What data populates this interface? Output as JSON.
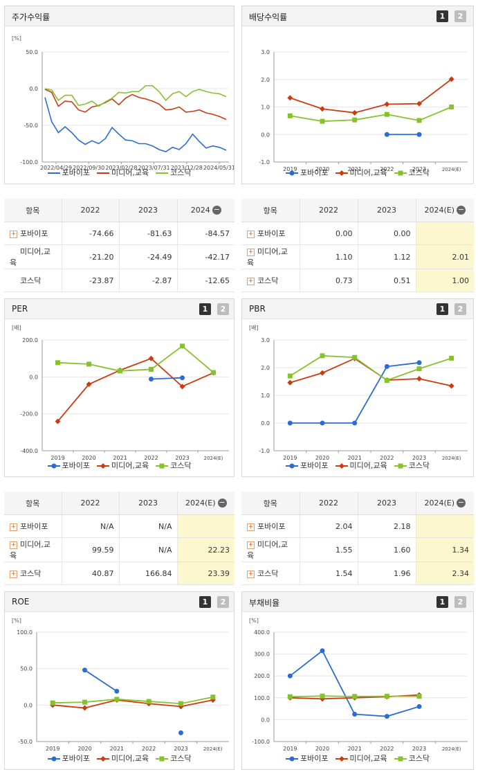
{
  "legend_names": [
    "포바이포",
    "미디어,교육",
    "코스닥"
  ],
  "colors": {
    "pobaipo": "#2a6cd4",
    "media": "#cc3a0f",
    "kosdaq": "#86c22b"
  },
  "charts": {
    "stock": {
      "title": "주가수익률",
      "unit": "[%]",
      "chart_data": {
        "type": "line",
        "yticks": [
          "50.0",
          "0.0",
          "-50.0",
          "-100.0"
        ],
        "ylim": [
          -100,
          50
        ],
        "xticks": [
          "2022/04/29",
          "2022/09/30",
          "2023/02/28",
          "2023/07/31",
          "2023/12/28",
          "2024/05/31"
        ],
        "series": [
          {
            "name": "포바이포",
            "values": [
              -12,
              -45,
              -60,
              -52,
              -60,
              -70,
              -76,
              -71,
              -75,
              -68,
              -53,
              -62,
              -70,
              -71,
              -75,
              -75,
              -78,
              -83,
              -86,
              -80,
              -83,
              -75,
              -62,
              -72,
              -81,
              -78,
              -80,
              -84
            ]
          },
          {
            "name": "미디어,교육",
            "values": [
              -1,
              -5,
              -24,
              -17,
              -18,
              -29,
              -32,
              -25,
              -23,
              -19,
              -14,
              -22,
              -13,
              -8,
              -12,
              -14,
              -17,
              -21,
              -29,
              -28,
              -25,
              -32,
              -31,
              -29,
              -33,
              -35,
              -38,
              -42
            ]
          },
          {
            "name": "코스닥",
            "values": [
              0,
              -2,
              -16,
              -9,
              -9,
              -23,
              -21,
              -17,
              -24,
              -18,
              -13,
              -5,
              -6,
              -4,
              -4,
              4,
              4,
              -4,
              -16,
              -7,
              -4,
              -11,
              -4,
              -1,
              -4,
              -6,
              -7,
              -11
            ]
          }
        ]
      }
    },
    "dividend": {
      "title": "배당수익률",
      "unit": "",
      "buttons": [
        "1",
        "2"
      ],
      "chart_data": {
        "type": "line",
        "yticks": [
          "3.0",
          "2.0",
          "1.0",
          "0.0",
          "-1.0"
        ],
        "ylim": [
          -1,
          3
        ],
        "categories": [
          "2019",
          "2020",
          "2021",
          "2022",
          "2023",
          "2024(E)"
        ],
        "series": [
          {
            "name": "포바이포",
            "values": [
              null,
              null,
              null,
              0.0,
              0.0,
              null
            ]
          },
          {
            "name": "미디어,교육",
            "values": [
              1.33,
              0.93,
              0.79,
              1.1,
              1.12,
              2.01
            ]
          },
          {
            "name": "코스닥",
            "values": [
              0.68,
              0.48,
              0.53,
              0.73,
              0.51,
              1.0
            ]
          }
        ]
      }
    },
    "per": {
      "title": "PER",
      "unit": "[배]",
      "buttons": [
        "1",
        "2"
      ],
      "chart_data": {
        "type": "line",
        "yticks": [
          "200.0",
          "0.0",
          "-200.0",
          "-400.0"
        ],
        "ylim": [
          -400,
          200
        ],
        "categories": [
          "2019",
          "2020",
          "2021",
          "2022",
          "2023",
          "2024(E)"
        ],
        "series": [
          {
            "name": "포바이포",
            "values": [
              null,
              null,
              null,
              -12,
              -5,
              null
            ]
          },
          {
            "name": "미디어,교육",
            "values": [
              -241,
              -40,
              36,
              99.59,
              -52,
              22.23
            ]
          },
          {
            "name": "코스닥",
            "values": [
              77,
              69,
              32,
              40.87,
              166.84,
              23.39
            ]
          }
        ]
      }
    },
    "pbr": {
      "title": "PBR",
      "unit": "[배]",
      "buttons": [
        "1",
        "2"
      ],
      "chart_data": {
        "type": "line",
        "yticks": [
          "3.0",
          "2.0",
          "1.0",
          "0.0",
          "-1.0"
        ],
        "ylim": [
          -1,
          3
        ],
        "categories": [
          "2019",
          "2020",
          "2021",
          "2022",
          "2023",
          "2024(E)"
        ],
        "series": [
          {
            "name": "포바이포",
            "values": [
              0.0,
              0.0,
              0.0,
              2.04,
              2.18,
              null
            ]
          },
          {
            "name": "미디어,교육",
            "values": [
              1.46,
              1.81,
              2.33,
              1.55,
              1.6,
              1.34
            ]
          },
          {
            "name": "코스닥",
            "values": [
              1.7,
              2.43,
              2.37,
              1.54,
              1.96,
              2.34
            ]
          }
        ]
      }
    },
    "roe": {
      "title": "ROE",
      "unit": "[%]",
      "buttons": [
        "1",
        "2"
      ],
      "chart_data": {
        "type": "line",
        "yticks": [
          "100.0",
          "50.0",
          "0.0",
          "-50.0"
        ],
        "ylim": [
          -50,
          100
        ],
        "categories": [
          "2019",
          "2020",
          "2021",
          "2022",
          "2023",
          "2024(E)"
        ],
        "series": [
          {
            "name": "포바이포",
            "values": [
              null,
              48,
              19,
              null,
              -38,
              null
            ]
          },
          {
            "name": "미디어,교육",
            "values": [
              0,
              -4,
              7,
              2,
              -2,
              7
            ]
          },
          {
            "name": "코스닥",
            "values": [
              3,
              4,
              8,
              5,
              2,
              11
            ]
          }
        ]
      }
    },
    "debt": {
      "title": "부채비율",
      "unit": "[%]",
      "buttons": [
        "1",
        "2"
      ],
      "chart_data": {
        "type": "line",
        "yticks": [
          "400.0",
          "300.0",
          "200.0",
          "100.0",
          "0.0",
          "-100.0"
        ],
        "ylim": [
          -100,
          400
        ],
        "categories": [
          "2019",
          "2020",
          "2021",
          "2022",
          "2023",
          "2024(E)"
        ],
        "series": [
          {
            "name": "포바이포",
            "values": [
              200,
              315,
              25,
              15,
              60,
              null
            ]
          },
          {
            "name": "미디어,교육",
            "values": [
              100,
              95,
              100,
              105,
              113,
              null
            ]
          },
          {
            "name": "코스닥",
            "values": [
              105,
              108,
              106,
              107,
              107,
              null
            ]
          }
        ]
      }
    }
  },
  "tables": {
    "stock": {
      "header": [
        "항목",
        "2022",
        "2023",
        "2024"
      ],
      "rows": [
        {
          "name": "포바이포",
          "expand": true,
          "values": [
            "-74.66",
            "-81.63",
            "-84.57"
          ]
        },
        {
          "name": "미디어,교육",
          "expand": false,
          "values": [
            "-21.20",
            "-24.49",
            "-42.17"
          ]
        },
        {
          "name": "코스닥",
          "expand": false,
          "values": [
            "-23.87",
            "-2.87",
            "-12.65"
          ]
        }
      ]
    },
    "dividend": {
      "header": [
        "항목",
        "2022",
        "2023",
        "2024(E)"
      ],
      "rows": [
        {
          "name": "포바이포",
          "expand": true,
          "values": [
            "0.00",
            "0.00",
            ""
          ]
        },
        {
          "name": "미디어,교육",
          "expand": true,
          "values": [
            "1.10",
            "1.12",
            "2.01"
          ]
        },
        {
          "name": "코스닥",
          "expand": true,
          "values": [
            "0.73",
            "0.51",
            "1.00"
          ]
        }
      ]
    },
    "per": {
      "header": [
        "항목",
        "2022",
        "2023",
        "2024(E)"
      ],
      "rows": [
        {
          "name": "포바이포",
          "expand": true,
          "values": [
            "N/A",
            "N/A",
            ""
          ]
        },
        {
          "name": "미디어,교육",
          "expand": true,
          "values": [
            "99.59",
            "N/A",
            "22.23"
          ]
        },
        {
          "name": "코스닥",
          "expand": true,
          "values": [
            "40.87",
            "166.84",
            "23.39"
          ]
        }
      ]
    },
    "pbr": {
      "header": [
        "항목",
        "2022",
        "2023",
        "2024(E)"
      ],
      "rows": [
        {
          "name": "포바이포",
          "expand": true,
          "values": [
            "2.04",
            "2.18",
            ""
          ]
        },
        {
          "name": "미디어,교육",
          "expand": true,
          "values": [
            "1.55",
            "1.60",
            "1.34"
          ]
        },
        {
          "name": "코스닥",
          "expand": true,
          "values": [
            "1.54",
            "1.96",
            "2.34"
          ]
        }
      ]
    }
  }
}
